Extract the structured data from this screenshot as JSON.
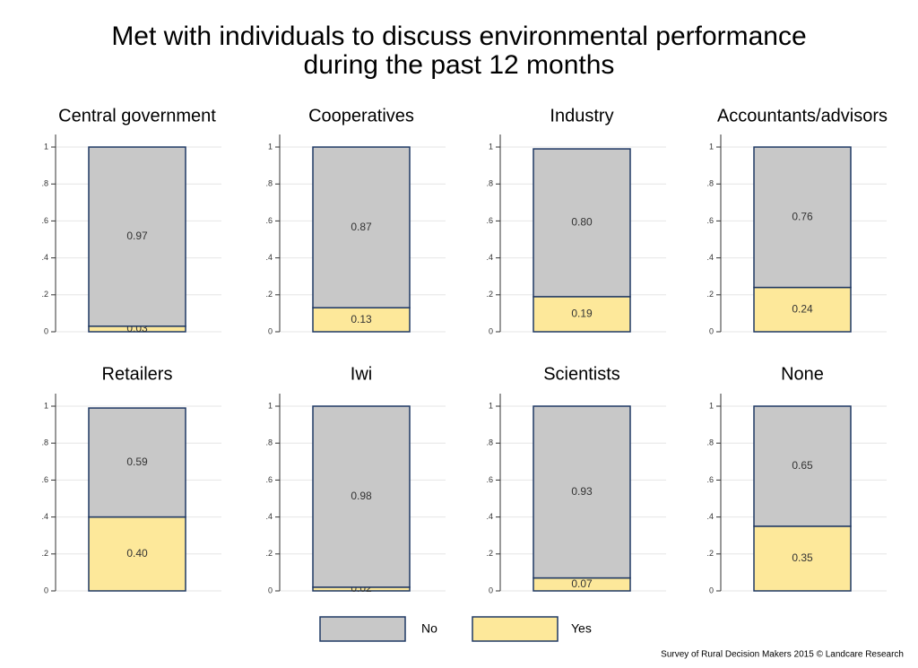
{
  "title": [
    "Met with individuals to discuss environmental performance",
    "during the past 12 months"
  ],
  "source": "Survey of Rural Decision Makers 2015 © Landcare Research",
  "chart_data": [
    {
      "type": "bar",
      "title": "Central government",
      "ylim": [
        0,
        1
      ],
      "yticks": [
        0,
        {
          "value": 0.2,
          "label": ".2"
        },
        {
          "value": 0.4,
          "label": ".4"
        },
        {
          "value": 0.6,
          "label": ".6"
        },
        {
          "value": 0.8,
          "label": ".8"
        },
        1
      ],
      "grid": true,
      "series": [
        {
          "name": "No",
          "color": "#c8c8c8",
          "values": [
            0.97
          ],
          "value_labels": [
            "0.97"
          ]
        },
        {
          "name": "Yes",
          "color": "#fde89a",
          "values": [
            0.03
          ],
          "value_labels": [
            "0.03"
          ]
        }
      ]
    },
    {
      "type": "bar",
      "title": "Cooperatives",
      "ylim": [
        0,
        1
      ],
      "yticks": [
        0,
        {
          "value": 0.2,
          "label": ".2"
        },
        {
          "value": 0.4,
          "label": ".4"
        },
        {
          "value": 0.6,
          "label": ".6"
        },
        {
          "value": 0.8,
          "label": ".8"
        },
        1
      ],
      "grid": true,
      "series": [
        {
          "name": "No",
          "color": "#c8c8c8",
          "values": [
            0.87
          ],
          "value_labels": [
            "0.87"
          ]
        },
        {
          "name": "Yes",
          "color": "#fde89a",
          "values": [
            0.13
          ],
          "value_labels": [
            "0.13"
          ]
        }
      ]
    },
    {
      "type": "bar",
      "title": "Industry",
      "ylim": [
        0,
        1
      ],
      "yticks": [
        0,
        {
          "value": 0.2,
          "label": ".2"
        },
        {
          "value": 0.4,
          "label": ".4"
        },
        {
          "value": 0.6,
          "label": ".6"
        },
        {
          "value": 0.8,
          "label": ".8"
        },
        1
      ],
      "grid": true,
      "series": [
        {
          "name": "No",
          "color": "#c8c8c8",
          "values": [
            0.8
          ],
          "value_labels": [
            "0.80"
          ]
        },
        {
          "name": "Yes",
          "color": "#fde89a",
          "values": [
            0.19
          ],
          "value_labels": [
            "0.19"
          ]
        }
      ]
    },
    {
      "type": "bar",
      "title": "Accountants/advisors",
      "ylim": [
        0,
        1
      ],
      "yticks": [
        0,
        {
          "value": 0.2,
          "label": ".2"
        },
        {
          "value": 0.4,
          "label": ".4"
        },
        {
          "value": 0.6,
          "label": ".6"
        },
        {
          "value": 0.8,
          "label": ".8"
        },
        1
      ],
      "grid": true,
      "series": [
        {
          "name": "No",
          "color": "#c8c8c8",
          "values": [
            0.76
          ],
          "value_labels": [
            "0.76"
          ]
        },
        {
          "name": "Yes",
          "color": "#fde89a",
          "values": [
            0.24
          ],
          "value_labels": [
            "0.24"
          ]
        }
      ]
    },
    {
      "type": "bar",
      "title": "Retailers",
      "ylim": [
        0,
        1
      ],
      "yticks": [
        0,
        {
          "value": 0.2,
          "label": ".2"
        },
        {
          "value": 0.4,
          "label": ".4"
        },
        {
          "value": 0.6,
          "label": ".6"
        },
        {
          "value": 0.8,
          "label": ".8"
        },
        1
      ],
      "grid": true,
      "series": [
        {
          "name": "No",
          "color": "#c8c8c8",
          "values": [
            0.59
          ],
          "value_labels": [
            "0.59"
          ]
        },
        {
          "name": "Yes",
          "color": "#fde89a",
          "values": [
            0.4
          ],
          "value_labels": [
            "0.40"
          ]
        }
      ]
    },
    {
      "type": "bar",
      "title": "Iwi",
      "ylim": [
        0,
        1
      ],
      "yticks": [
        0,
        {
          "value": 0.2,
          "label": ".2"
        },
        {
          "value": 0.4,
          "label": ".4"
        },
        {
          "value": 0.6,
          "label": ".6"
        },
        {
          "value": 0.8,
          "label": ".8"
        },
        1
      ],
      "grid": true,
      "series": [
        {
          "name": "No",
          "color": "#c8c8c8",
          "values": [
            0.98
          ],
          "value_labels": [
            "0.98"
          ]
        },
        {
          "name": "Yes",
          "color": "#fde89a",
          "values": [
            0.02
          ],
          "value_labels": [
            "0.02"
          ]
        }
      ]
    },
    {
      "type": "bar",
      "title": "Scientists",
      "ylim": [
        0,
        1
      ],
      "yticks": [
        0,
        {
          "value": 0.2,
          "label": ".2"
        },
        {
          "value": 0.4,
          "label": ".4"
        },
        {
          "value": 0.6,
          "label": ".6"
        },
        {
          "value": 0.8,
          "label": ".8"
        },
        1
      ],
      "grid": true,
      "series": [
        {
          "name": "No",
          "color": "#c8c8c8",
          "values": [
            0.93
          ],
          "value_labels": [
            "0.93"
          ]
        },
        {
          "name": "Yes",
          "color": "#fde89a",
          "values": [
            0.07
          ],
          "value_labels": [
            "0.07"
          ]
        }
      ]
    },
    {
      "type": "bar",
      "title": "None",
      "ylim": [
        0,
        1
      ],
      "yticks": [
        0,
        {
          "value": 0.2,
          "label": ".2"
        },
        {
          "value": 0.4,
          "label": ".4"
        },
        {
          "value": 0.6,
          "label": ".6"
        },
        {
          "value": 0.8,
          "label": ".8"
        },
        1
      ],
      "grid": true,
      "series": [
        {
          "name": "No",
          "color": "#c8c8c8",
          "values": [
            0.65
          ],
          "value_labels": [
            "0.65"
          ]
        },
        {
          "name": "Yes",
          "color": "#fde89a",
          "values": [
            0.35
          ],
          "value_labels": [
            "0.35"
          ]
        }
      ]
    }
  ]
}
